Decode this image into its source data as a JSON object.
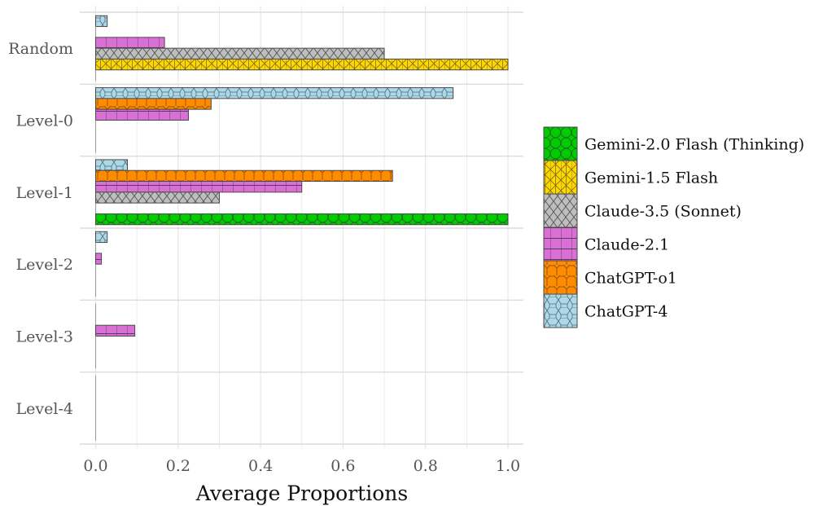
{
  "chart_data": {
    "type": "bar",
    "orientation": "horizontal",
    "title": "",
    "xlabel": "Average Proportions",
    "ylabel": "",
    "xlim": [
      0,
      1
    ],
    "xticks": [
      "0.0",
      "0.2",
      "0.4",
      "0.6",
      "0.8",
      "1.0"
    ],
    "xtick_values": [
      0,
      0.2,
      0.4,
      0.6,
      0.8,
      1.0
    ],
    "grid": true,
    "legend_position": "right",
    "categories": [
      "Random",
      "Level-0",
      "Level-1",
      "Level-2",
      "Level-3",
      "Level-4"
    ],
    "series": [
      {
        "name": "ChatGPT-4",
        "color": "#add8e6",
        "pattern": "octagons",
        "values": [
          0.028,
          0.867,
          0.077,
          0.028,
          0,
          0
        ]
      },
      {
        "name": "ChatGPT-o1",
        "color": "#ff8c00",
        "pattern": "hexagons",
        "values": [
          0,
          0.28,
          0.72,
          0,
          0,
          0
        ]
      },
      {
        "name": "Claude-2.1",
        "color": "#da70d6",
        "pattern": "grid",
        "values": [
          0.167,
          0.225,
          0.5,
          0.014,
          0.095,
          0
        ]
      },
      {
        "name": "Claude-3.5 (Sonnet)",
        "color": "#bebebe",
        "pattern": "crosshatch",
        "values": [
          0.7,
          0,
          0.3,
          0,
          0,
          0
        ]
      },
      {
        "name": "Gemini-1.5 Flash",
        "color": "#ffd700",
        "pattern": "triangles",
        "values": [
          1.0,
          0,
          0,
          0,
          0,
          0
        ]
      },
      {
        "name": "Gemini-2.0 Flash (Thinking)",
        "color": "#00cd00",
        "pattern": "circles",
        "values": [
          0,
          0,
          1.0,
          0,
          0,
          0
        ]
      }
    ],
    "legend_order": [
      "Gemini-2.0 Flash (Thinking)",
      "Gemini-1.5 Flash",
      "Claude-3.5 (Sonnet)",
      "Claude-2.1",
      "ChatGPT-o1",
      "ChatGPT-4"
    ]
  }
}
